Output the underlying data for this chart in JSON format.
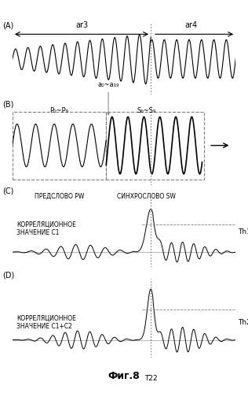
{
  "title": "Фиг.8",
  "background_color": "#ffffff",
  "panel_labels": [
    "(A)",
    "(B)",
    "(C)",
    "(D)"
  ],
  "ar3_label": "ar3",
  "ar4_label": "ar4",
  "a0_a19_label": "a₀~a₁₉",
  "p0_p9_label": "P₀~P₉",
  "s0_s9_label": "S₀~S₉",
  "pw_label": "ПРЕДСЛОВО PW",
  "sw_label": "СИНХРОСЛОВО SW",
  "c1_label": "КОРРЕЛЯЦИОННОЕ\nЗНАЧЕНИЕ C1",
  "c1c2_label": "КОРРЕЛЯЦИОННОЕ\nЗНАЧЕНИЕ C1+C2",
  "th1_label": "Th1",
  "th2_label": "Th2",
  "t22_label": "T22",
  "vertical_line_x": 0.62
}
